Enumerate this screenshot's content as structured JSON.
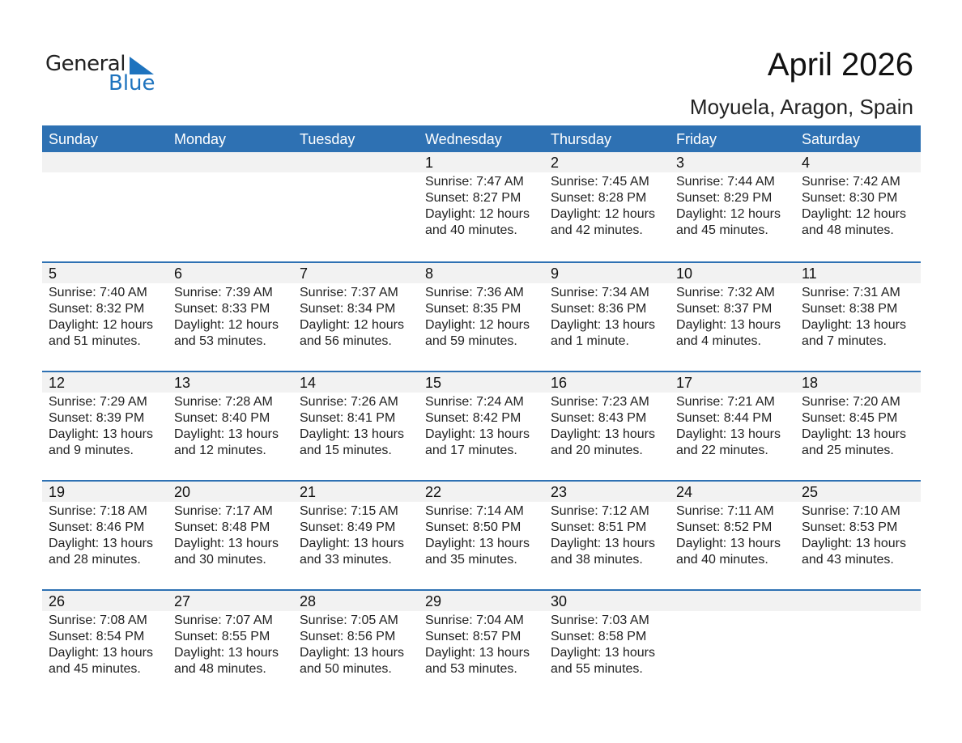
{
  "logo": {
    "general": "General",
    "blue": "Blue"
  },
  "title": "April 2026",
  "location": "Moyuela, Aragon, Spain",
  "colors": {
    "accent": "#2e71b3",
    "strip": "#f2f2f2"
  },
  "weekdays": [
    "Sunday",
    "Monday",
    "Tuesday",
    "Wednesday",
    "Thursday",
    "Friday",
    "Saturday"
  ],
  "weeks": [
    [
      null,
      null,
      null,
      {
        "date": "1",
        "lines": [
          "Sunrise: 7:47 AM",
          "Sunset: 8:27 PM",
          "Daylight: 12 hours",
          "and 40 minutes."
        ]
      },
      {
        "date": "2",
        "lines": [
          "Sunrise: 7:45 AM",
          "Sunset: 8:28 PM",
          "Daylight: 12 hours",
          "and 42 minutes."
        ]
      },
      {
        "date": "3",
        "lines": [
          "Sunrise: 7:44 AM",
          "Sunset: 8:29 PM",
          "Daylight: 12 hours",
          "and 45 minutes."
        ]
      },
      {
        "date": "4",
        "lines": [
          "Sunrise: 7:42 AM",
          "Sunset: 8:30 PM",
          "Daylight: 12 hours",
          "and 48 minutes."
        ]
      }
    ],
    [
      {
        "date": "5",
        "lines": [
          "Sunrise: 7:40 AM",
          "Sunset: 8:32 PM",
          "Daylight: 12 hours",
          "and 51 minutes."
        ]
      },
      {
        "date": "6",
        "lines": [
          "Sunrise: 7:39 AM",
          "Sunset: 8:33 PM",
          "Daylight: 12 hours",
          "and 53 minutes."
        ]
      },
      {
        "date": "7",
        "lines": [
          "Sunrise: 7:37 AM",
          "Sunset: 8:34 PM",
          "Daylight: 12 hours",
          "and 56 minutes."
        ]
      },
      {
        "date": "8",
        "lines": [
          "Sunrise: 7:36 AM",
          "Sunset: 8:35 PM",
          "Daylight: 12 hours",
          "and 59 minutes."
        ]
      },
      {
        "date": "9",
        "lines": [
          "Sunrise: 7:34 AM",
          "Sunset: 8:36 PM",
          "Daylight: 13 hours",
          "and 1 minute."
        ]
      },
      {
        "date": "10",
        "lines": [
          "Sunrise: 7:32 AM",
          "Sunset: 8:37 PM",
          "Daylight: 13 hours",
          "and 4 minutes."
        ]
      },
      {
        "date": "11",
        "lines": [
          "Sunrise: 7:31 AM",
          "Sunset: 8:38 PM",
          "Daylight: 13 hours",
          "and 7 minutes."
        ]
      }
    ],
    [
      {
        "date": "12",
        "lines": [
          "Sunrise: 7:29 AM",
          "Sunset: 8:39 PM",
          "Daylight: 13 hours",
          "and 9 minutes."
        ]
      },
      {
        "date": "13",
        "lines": [
          "Sunrise: 7:28 AM",
          "Sunset: 8:40 PM",
          "Daylight: 13 hours",
          "and 12 minutes."
        ]
      },
      {
        "date": "14",
        "lines": [
          "Sunrise: 7:26 AM",
          "Sunset: 8:41 PM",
          "Daylight: 13 hours",
          "and 15 minutes."
        ]
      },
      {
        "date": "15",
        "lines": [
          "Sunrise: 7:24 AM",
          "Sunset: 8:42 PM",
          "Daylight: 13 hours",
          "and 17 minutes."
        ]
      },
      {
        "date": "16",
        "lines": [
          "Sunrise: 7:23 AM",
          "Sunset: 8:43 PM",
          "Daylight: 13 hours",
          "and 20 minutes."
        ]
      },
      {
        "date": "17",
        "lines": [
          "Sunrise: 7:21 AM",
          "Sunset: 8:44 PM",
          "Daylight: 13 hours",
          "and 22 minutes."
        ]
      },
      {
        "date": "18",
        "lines": [
          "Sunrise: 7:20 AM",
          "Sunset: 8:45 PM",
          "Daylight: 13 hours",
          "and 25 minutes."
        ]
      }
    ],
    [
      {
        "date": "19",
        "lines": [
          "Sunrise: 7:18 AM",
          "Sunset: 8:46 PM",
          "Daylight: 13 hours",
          "and 28 minutes."
        ]
      },
      {
        "date": "20",
        "lines": [
          "Sunrise: 7:17 AM",
          "Sunset: 8:48 PM",
          "Daylight: 13 hours",
          "and 30 minutes."
        ]
      },
      {
        "date": "21",
        "lines": [
          "Sunrise: 7:15 AM",
          "Sunset: 8:49 PM",
          "Daylight: 13 hours",
          "and 33 minutes."
        ]
      },
      {
        "date": "22",
        "lines": [
          "Sunrise: 7:14 AM",
          "Sunset: 8:50 PM",
          "Daylight: 13 hours",
          "and 35 minutes."
        ]
      },
      {
        "date": "23",
        "lines": [
          "Sunrise: 7:12 AM",
          "Sunset: 8:51 PM",
          "Daylight: 13 hours",
          "and 38 minutes."
        ]
      },
      {
        "date": "24",
        "lines": [
          "Sunrise: 7:11 AM",
          "Sunset: 8:52 PM",
          "Daylight: 13 hours",
          "and 40 minutes."
        ]
      },
      {
        "date": "25",
        "lines": [
          "Sunrise: 7:10 AM",
          "Sunset: 8:53 PM",
          "Daylight: 13 hours",
          "and 43 minutes."
        ]
      }
    ],
    [
      {
        "date": "26",
        "lines": [
          "Sunrise: 7:08 AM",
          "Sunset: 8:54 PM",
          "Daylight: 13 hours",
          "and 45 minutes."
        ]
      },
      {
        "date": "27",
        "lines": [
          "Sunrise: 7:07 AM",
          "Sunset: 8:55 PM",
          "Daylight: 13 hours",
          "and 48 minutes."
        ]
      },
      {
        "date": "28",
        "lines": [
          "Sunrise: 7:05 AM",
          "Sunset: 8:56 PM",
          "Daylight: 13 hours",
          "and 50 minutes."
        ]
      },
      {
        "date": "29",
        "lines": [
          "Sunrise: 7:04 AM",
          "Sunset: 8:57 PM",
          "Daylight: 13 hours",
          "and 53 minutes."
        ]
      },
      {
        "date": "30",
        "lines": [
          "Sunrise: 7:03 AM",
          "Sunset: 8:58 PM",
          "Daylight: 13 hours",
          "and 55 minutes."
        ]
      },
      null,
      null
    ]
  ]
}
